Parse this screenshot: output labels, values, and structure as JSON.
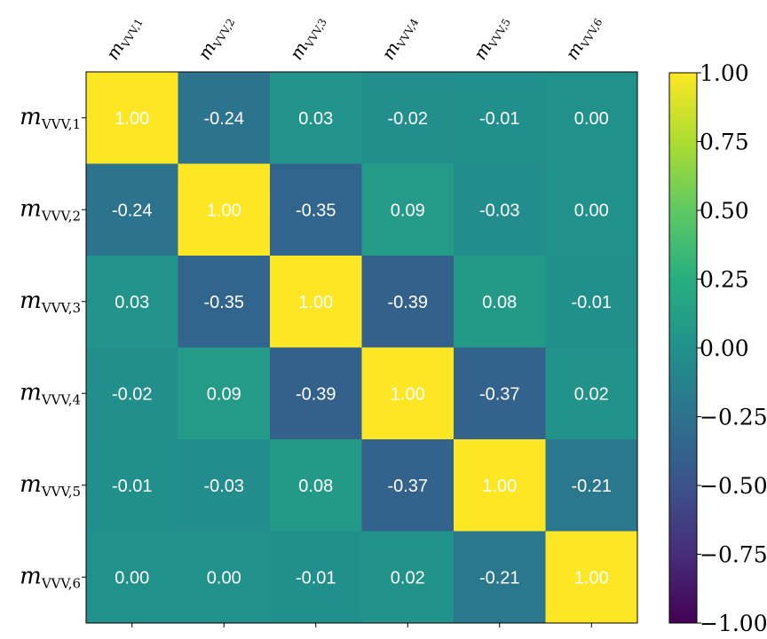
{
  "chart_data": {
    "type": "heatmap",
    "title": "",
    "rows": [
      {
        "base": "m",
        "sub": "VVV,1"
      },
      {
        "base": "m",
        "sub": "VVV,2"
      },
      {
        "base": "m",
        "sub": "VVV,3"
      },
      {
        "base": "m",
        "sub": "VVV,4"
      },
      {
        "base": "m",
        "sub": "VVV,5"
      },
      {
        "base": "m",
        "sub": "VVV,6"
      }
    ],
    "columns": [
      {
        "base": "m",
        "sub": "VVV,1"
      },
      {
        "base": "m",
        "sub": "VVV,2"
      },
      {
        "base": "m",
        "sub": "VVV,3"
      },
      {
        "base": "m",
        "sub": "VVV,4"
      },
      {
        "base": "m",
        "sub": "VVV,5"
      },
      {
        "base": "m",
        "sub": "VVV,6"
      }
    ],
    "values": [
      [
        1.0,
        -0.24,
        0.03,
        -0.02,
        -0.01,
        0.0
      ],
      [
        -0.24,
        1.0,
        -0.35,
        0.09,
        -0.03,
        0.0
      ],
      [
        0.03,
        -0.35,
        1.0,
        -0.39,
        0.08,
        -0.01
      ],
      [
        -0.02,
        0.09,
        -0.39,
        1.0,
        -0.37,
        0.02
      ],
      [
        -0.01,
        -0.03,
        0.08,
        -0.37,
        1.0,
        -0.21
      ],
      [
        0.0,
        0.0,
        -0.01,
        0.02,
        -0.21,
        1.0
      ]
    ],
    "cell_labels": [
      [
        "1.00",
        "-0.24",
        "0.03",
        "-0.02",
        "-0.01",
        "0.00"
      ],
      [
        "-0.24",
        "1.00",
        "-0.35",
        "0.09",
        "-0.03",
        "0.00"
      ],
      [
        "0.03",
        "-0.35",
        "1.00",
        "-0.39",
        "0.08",
        "-0.01"
      ],
      [
        "-0.02",
        "0.09",
        "-0.39",
        "1.00",
        "-0.37",
        "0.02"
      ],
      [
        "-0.01",
        "-0.03",
        "0.08",
        "-0.37",
        "1.00",
        "-0.21"
      ],
      [
        "0.00",
        "0.00",
        "-0.01",
        "0.02",
        "-0.21",
        "1.00"
      ]
    ],
    "colormap": "viridis",
    "vmin": -1.0,
    "vmax": 1.0,
    "colorbar": {
      "ticks": [
        1.0,
        0.75,
        0.5,
        0.25,
        0.0,
        -0.25,
        -0.5,
        -0.75,
        -1.0
      ],
      "tick_labels": [
        "1.00",
        "0.75",
        "0.50",
        "0.25",
        "0.00",
        "−0.25",
        "−0.50",
        "−0.75",
        "−1.00"
      ]
    },
    "grid": false,
    "colorbar_position": "right"
  }
}
